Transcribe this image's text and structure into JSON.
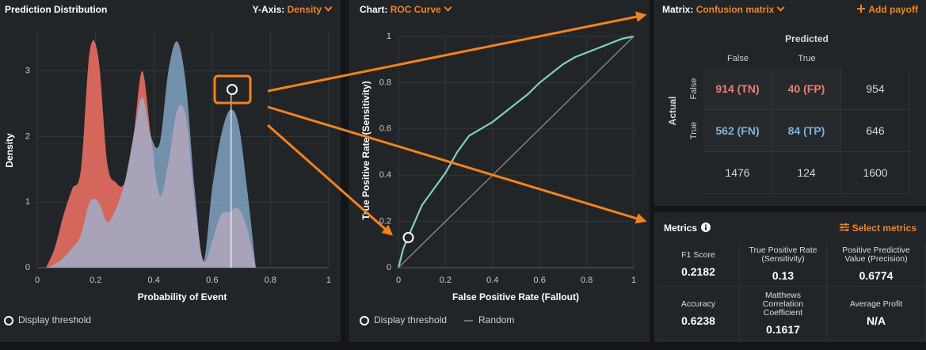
{
  "chart_data": [
    {
      "type": "area",
      "title": "Prediction Distribution",
      "selector_label": "Y-Axis:",
      "selector_value": "Density",
      "x_label": "Probability of Event",
      "y_label": "Density",
      "x": [
        0.03,
        0.06,
        0.09,
        0.12,
        0.15,
        0.18,
        0.21,
        0.24,
        0.27,
        0.3,
        0.33,
        0.36,
        0.39,
        0.42,
        0.45,
        0.48,
        0.51,
        0.54,
        0.57,
        0.6,
        0.63,
        0.66,
        0.69,
        0.72,
        0.75
      ],
      "series": [
        {
          "color": "#d4665c",
          "values": [
            0,
            0.3,
            0.8,
            1.2,
            1.5,
            3.3,
            3.2,
            1.6,
            1.3,
            1.3,
            2.0,
            3.0,
            2.0,
            1.1,
            1.6,
            2.4,
            2.3,
            1.0,
            0.1,
            0.4,
            0.8,
            0.85,
            0.9,
            0.6,
            0
          ]
        },
        {
          "color": "#96bee1",
          "values": [
            0,
            0.05,
            0.15,
            0.3,
            0.5,
            1.0,
            1.0,
            0.7,
            0.9,
            1.3,
            2.0,
            2.6,
            2.0,
            1.9,
            3.0,
            3.45,
            2.8,
            1.2,
            0.1,
            1.2,
            2.0,
            2.4,
            2.2,
            1.2,
            0
          ]
        }
      ],
      "xlim": [
        0,
        1
      ],
      "xticks": [
        0,
        0.2,
        0.4,
        0.6,
        0.8,
        1
      ],
      "ylim": [
        0,
        3.6
      ],
      "yticks": [
        0,
        1,
        2,
        3
      ],
      "grid": true,
      "threshold": 0.665,
      "threshold_legend": "Display threshold"
    },
    {
      "type": "line",
      "selector_label": "Chart:",
      "selector_value": "ROC Curve",
      "x_label": "False Positive Rate (Fallout)",
      "y_label": "True Positive Rate (Sensitivity)",
      "x": [
        0,
        0.02,
        0.04,
        0.07,
        0.1,
        0.15,
        0.2,
        0.25,
        0.3,
        0.35,
        0.4,
        0.45,
        0.5,
        0.55,
        0.6,
        0.65,
        0.7,
        0.75,
        0.8,
        0.85,
        0.9,
        0.95,
        1
      ],
      "series": [
        {
          "color": "#7fd1bd",
          "values": [
            0,
            0.08,
            0.13,
            0.2,
            0.27,
            0.34,
            0.41,
            0.5,
            0.57,
            0.6,
            0.63,
            0.67,
            0.71,
            0.75,
            0.8,
            0.84,
            0.88,
            0.91,
            0.93,
            0.95,
            0.97,
            0.99,
            1
          ]
        },
        {
          "name": "Random",
          "color": "#8a8d90",
          "x": [
            0,
            1
          ],
          "values": [
            0,
            1
          ]
        }
      ],
      "xlim": [
        0,
        1
      ],
      "xticks": [
        0,
        0.2,
        0.4,
        0.6,
        0.8,
        1
      ],
      "ylim": [
        0,
        1
      ],
      "yticks": [
        0,
        0.2,
        0.4,
        0.6,
        0.8,
        1
      ],
      "grid": true,
      "threshold_point": {
        "x": 0.042,
        "y": 0.13
      },
      "threshold_legend": "Display threshold"
    }
  ],
  "matrix": {
    "selector_label": "Matrix:",
    "selector_value": "Confusion matrix",
    "action": "Add payoff",
    "predicted_label": "Predicted",
    "actual_label": "Actual",
    "column_labels": [
      "False",
      "True"
    ],
    "row_labels": [
      "False",
      "True"
    ],
    "rows": [
      [
        "914 (TN)",
        "40 (FP)",
        954
      ],
      [
        "562 (FN)",
        "84 (TP)",
        646
      ],
      [
        1476,
        124,
        1600
      ]
    ]
  },
  "metrics": {
    "title": "Metrics",
    "action": "Select metrics",
    "items": [
      {
        "label": "F1 Score",
        "value": 0.2182
      },
      {
        "label": "True Positive Rate (Sensitivity)",
        "value": 0.13
      },
      {
        "label": "Positive Predictive Value (Precision)",
        "value": 0.6774
      },
      {
        "label": "Accuracy",
        "value": 0.6238
      },
      {
        "label": "Matthews Correlation Coefficient",
        "value": 0.1617
      },
      {
        "label": "Average Profit",
        "value": "N/A"
      }
    ]
  }
}
